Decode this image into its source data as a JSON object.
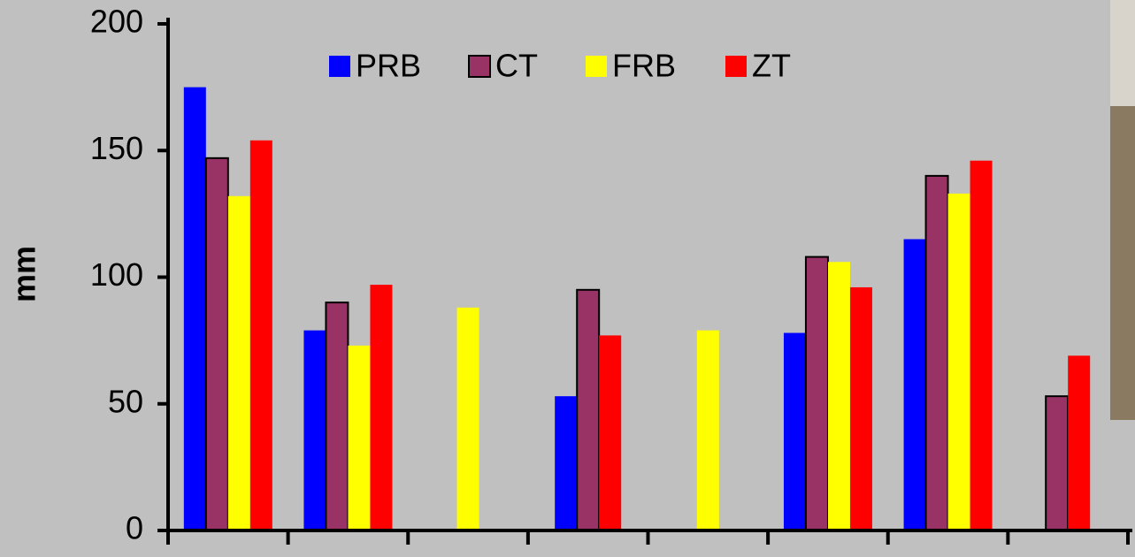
{
  "chart_data": {
    "type": "bar",
    "y_label": "mm",
    "categories": [
      null,
      null,
      null,
      null,
      null,
      null,
      null,
      null
    ],
    "series": [
      {
        "name": "PRB",
        "color": "#0000ff",
        "values": [
          175,
          79,
          null,
          53,
          null,
          78,
          115,
          null
        ]
      },
      {
        "name": "CT",
        "color": "#993366",
        "edgecolor": "#000000",
        "values": [
          147,
          90,
          null,
          95,
          null,
          108,
          140,
          53
        ]
      },
      {
        "name": "FRB",
        "color": "#ffff00",
        "values": [
          132,
          73,
          88,
          null,
          79,
          106,
          133,
          null
        ]
      },
      {
        "name": "ZT",
        "color": "#ff0000",
        "values": [
          154,
          97,
          null,
          77,
          null,
          96,
          146,
          69
        ]
      }
    ],
    "ylim": [
      0,
      200
    ],
    "yticks": [
      0,
      50,
      100,
      150,
      200
    ],
    "legend": "top",
    "grid": false
  }
}
